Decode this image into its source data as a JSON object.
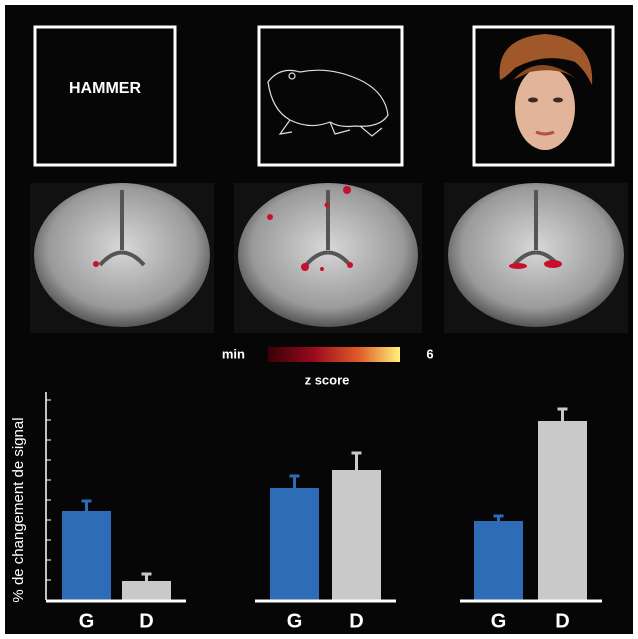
{
  "stimulus_text": "HAMMER",
  "colorbar": {
    "min": "min",
    "max": 6,
    "label": "z score"
  },
  "chart_data": [
    {
      "type": "bar",
      "ylabel": "% de changement de signal",
      "categories": [
        "G",
        "D"
      ],
      "values": [
        4.45,
        0.95
      ],
      "errors": [
        0.5,
        0.35
      ],
      "colors": [
        "#2f6cb8",
        "#c9c9c9"
      ],
      "ylim": [
        0,
        10
      ],
      "yticks": [
        0,
        1,
        2,
        3,
        4,
        5,
        6,
        7,
        8,
        9,
        10
      ]
    },
    {
      "type": "bar",
      "categories": [
        "G",
        "D"
      ],
      "values": [
        5.6,
        6.5
      ],
      "errors": [
        0.6,
        0.85
      ],
      "colors": [
        "#2f6cb8",
        "#c9c9c9"
      ],
      "ylim": [
        0,
        10
      ]
    },
    {
      "type": "bar",
      "categories": [
        "G",
        "D"
      ],
      "values": [
        3.95,
        8.95
      ],
      "errors": [
        0.25,
        0.6
      ],
      "colors": [
        "#2f6cb8",
        "#c9c9c9"
      ],
      "ylim": [
        0,
        10
      ]
    }
  ]
}
